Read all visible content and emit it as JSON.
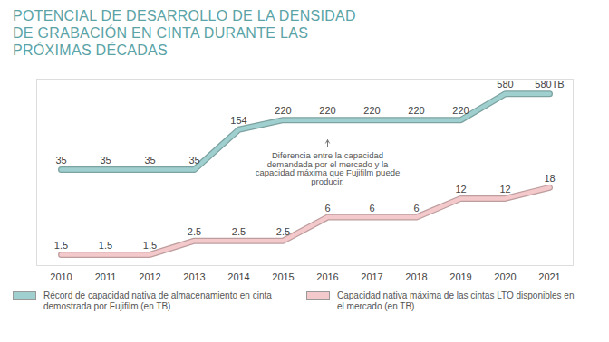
{
  "chart_data": {
    "type": "line",
    "title": "POTENCIAL DE DESARROLLO DE LA DENSIDAD DE GRABACIÓN EN CINTA DURANTE LAS PRÓXIMAS DÉCADAS",
    "categories": [
      "2010",
      "2011",
      "2012",
      "2013",
      "2014",
      "2015",
      "2016",
      "2017",
      "2018",
      "2019",
      "2020",
      "2021"
    ],
    "series": [
      {
        "name": "Récord de capacidad nativa de almacenamiento en cinta demostrada por Fujifilm (en TB)",
        "color": "#9fd0cf",
        "values": [
          35,
          35,
          35,
          35,
          154,
          220,
          220,
          220,
          220,
          220,
          580,
          580
        ],
        "value_labels": [
          "35",
          "35",
          "35",
          "35",
          "154",
          "220",
          "220",
          "220",
          "220",
          "220",
          "580",
          "580TB"
        ]
      },
      {
        "name": "Capacidad nativa máxima de las cintas LTO disponibles en el mercado (en TB)",
        "color": "#f4c9cb",
        "values": [
          1.5,
          1.5,
          1.5,
          2.5,
          2.5,
          2.5,
          6,
          6,
          6,
          12,
          12,
          18
        ]
      }
    ],
    "annotation": "Diferencia entre la capacidad demandada por el mercado y la capacidad máxima que Fujifilm puede producir.",
    "log": "y",
    "ylim": [
      1,
      1000
    ],
    "grid": false,
    "data_labels": true,
    "tick_labels": "x",
    "legend": "bottom-left"
  }
}
